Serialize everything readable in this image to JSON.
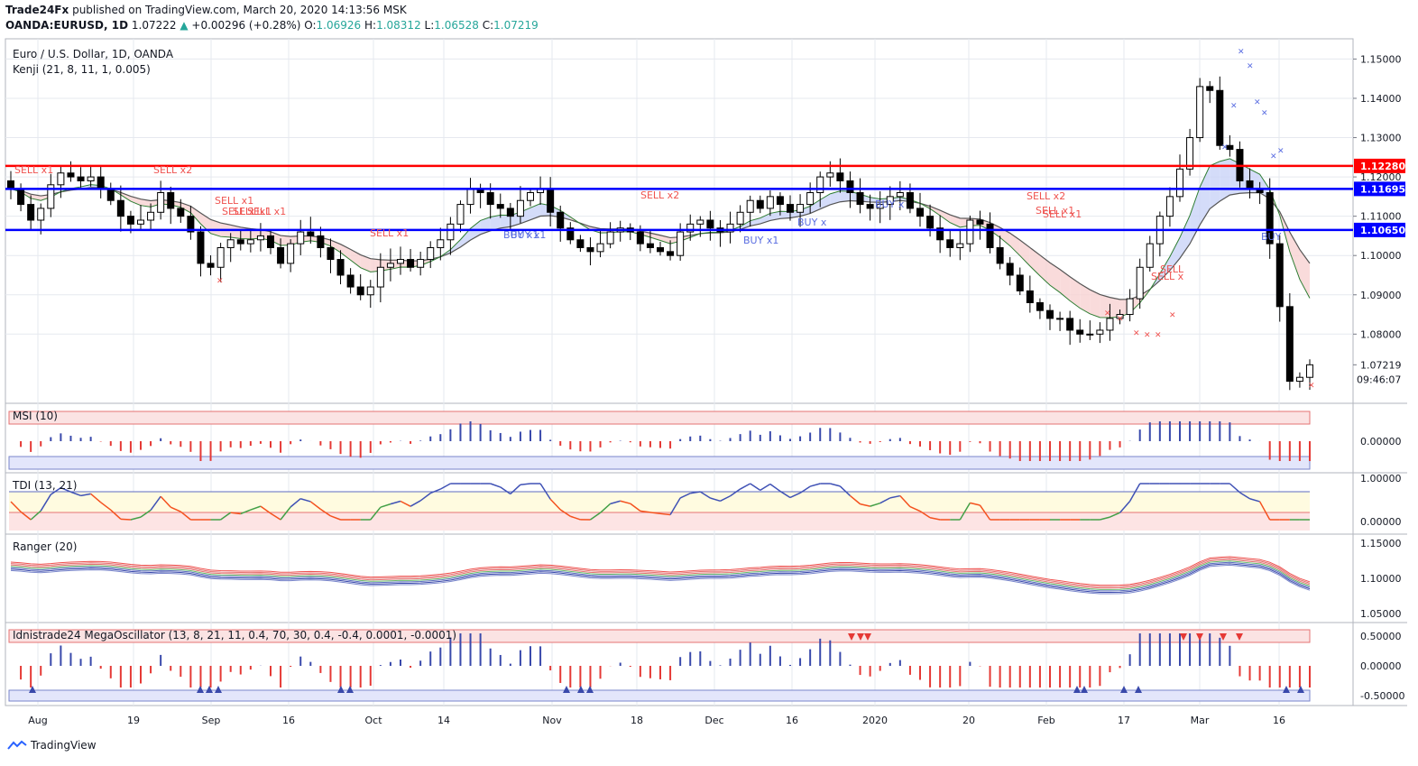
{
  "header": {
    "publisher": "Trade24Fx",
    "published_text": "published on TradingView.com, March 20, 2020 14:13:56 MSK",
    "symbol": "OANDA:EURUSD, 1D",
    "last": "1.07222",
    "change": "+0.00296 (+0.28%)",
    "o_label": "O:",
    "o": "1.06926",
    "h_label": "H:",
    "h": "1.08312",
    "l_label": "L:",
    "l": "1.06528",
    "c_label": "C:",
    "c": "1.07219"
  },
  "main_panel": {
    "title": "Euro / U.S. Dollar, 1D, OANDA",
    "indicator": "Kenji (21, 8, 11, 1, 0.005)",
    "price_ticks": [
      "1.15000",
      "1.14000",
      "1.13000",
      "1.12000",
      "1.11000",
      "1.10000",
      "1.09000",
      "1.08000",
      "1.07219"
    ],
    "countdown": "09:46:07",
    "levels": [
      {
        "label": "1.12280",
        "value": 1.1228,
        "color": "#ff0000"
      },
      {
        "label": "1.11695",
        "value": 1.11695,
        "color": "#0000ff"
      },
      {
        "label": "1.10650",
        "value": 1.1065,
        "color": "#0000ff"
      }
    ],
    "signals": [
      {
        "text": "SELL x1",
        "type": "sell"
      },
      {
        "text": "SELL x2",
        "type": "sell"
      },
      {
        "text": "SELL x1",
        "type": "sell"
      },
      {
        "text": "SELL x1",
        "type": "sell"
      },
      {
        "text": "SELL x1",
        "type": "sell"
      },
      {
        "text": "SELL x1",
        "type": "sell"
      },
      {
        "text": "SELL x1",
        "type": "sell"
      },
      {
        "text": "BUY x1",
        "type": "buy"
      },
      {
        "text": "BUY x1",
        "type": "buy"
      },
      {
        "text": "SELL x2",
        "type": "sell"
      },
      {
        "text": "BUY x1",
        "type": "buy"
      },
      {
        "text": "BUY x",
        "type": "buy"
      },
      {
        "text": "BUY x",
        "type": "buy"
      },
      {
        "text": "SELL x2",
        "type": "sell"
      },
      {
        "text": "SELL x1",
        "type": "sell"
      },
      {
        "text": "SELL x1",
        "type": "sell"
      },
      {
        "text": "SELL",
        "type": "sell"
      },
      {
        "text": "SELL x",
        "type": "sell"
      },
      {
        "text": "BUY",
        "type": "buy"
      }
    ]
  },
  "panels": [
    {
      "title": "MSI (10)",
      "ticks": [
        "0.00000"
      ]
    },
    {
      "title": "TDI (13, 21)",
      "ticks": [
        "1.00000",
        "0.00000"
      ]
    },
    {
      "title": "Ranger (20)",
      "ticks": [
        "1.15000",
        "1.10000",
        "1.05000"
      ]
    },
    {
      "title": "Idnistrade24 MegaOscillator (13, 8, 21, 11, 0.4, 70, 30, 0.4, -0.4, 0.0001, -0.0001)",
      "ticks": [
        "0.50000",
        "0.00000",
        "-0.50000"
      ]
    }
  ],
  "time_axis": [
    "Aug",
    "19",
    "Sep",
    "16",
    "Oct",
    "14",
    "Nov",
    "18",
    "Dec",
    "16",
    "2020",
    "20",
    "Feb",
    "17",
    "Mar",
    "16"
  ],
  "footer": {
    "brand": "TradingView"
  },
  "colors": {
    "bull": "#ffffff",
    "bear": "#000000",
    "sell": "#ef5350",
    "buy": "#5b6ee1",
    "grid": "#e6e9ef"
  },
  "chart_data": {
    "type": "candlestick",
    "period": "1D",
    "close_path_approx": [
      1.117,
      1.113,
      1.109,
      1.112,
      1.118,
      1.121,
      1.12,
      1.119,
      1.12,
      1.117,
      1.114,
      1.11,
      1.108,
      1.109,
      1.111,
      1.116,
      1.112,
      1.11,
      1.106,
      1.098,
      1.097,
      1.102,
      1.104,
      1.103,
      1.104,
      1.105,
      1.102,
      1.098,
      1.103,
      1.106,
      1.105,
      1.102,
      1.099,
      1.095,
      1.092,
      1.09,
      1.092,
      1.097,
      1.098,
      1.099,
      1.097,
      1.099,
      1.102,
      1.104,
      1.108,
      1.113,
      1.117,
      1.116,
      1.113,
      1.112,
      1.11,
      1.114,
      1.116,
      1.117,
      1.111,
      1.107,
      1.104,
      1.102,
      1.101,
      1.103,
      1.106,
      1.107,
      1.106,
      1.103,
      1.102,
      1.101,
      1.1,
      1.106,
      1.108,
      1.109,
      1.107,
      1.106,
      1.108,
      1.111,
      1.114,
      1.112,
      1.115,
      1.113,
      1.111,
      1.113,
      1.116,
      1.12,
      1.121,
      1.119,
      1.116,
      1.113,
      1.112,
      1.113,
      1.115,
      1.116,
      1.112,
      1.11,
      1.107,
      1.104,
      1.102,
      1.103,
      1.109,
      1.108,
      1.102,
      1.098,
      1.095,
      1.091,
      1.088,
      1.086,
      1.084,
      1.084,
      1.081,
      1.08,
      1.08,
      1.081,
      1.084,
      1.085,
      1.089,
      1.097,
      1.103,
      1.11,
      1.115,
      1.122,
      1.13,
      1.143,
      1.142,
      1.128,
      1.127,
      1.119,
      1.117,
      1.116,
      1.103,
      1.087,
      1.068,
      1.069,
      1.07219
    ]
  }
}
